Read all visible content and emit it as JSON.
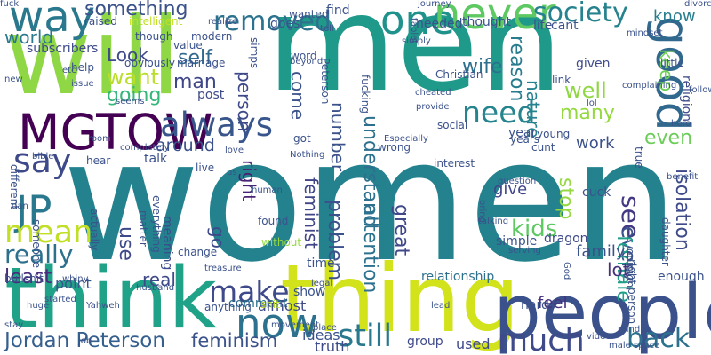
{
  "word_cloud": {
    "background": "#ffffff",
    "words": [
      {
        "text": "men",
        "color": "#1f9a8a"
      },
      {
        "text": "women",
        "color": "#23828e"
      },
      {
        "text": "will",
        "color": "#8fd744"
      },
      {
        "text": "think",
        "color": "#1fa287"
      },
      {
        "text": "thing",
        "color": "#d2e21b"
      },
      {
        "text": "people",
        "color": "#3b518b"
      },
      {
        "text": "MGTOW",
        "color": "#440154"
      },
      {
        "text": "always",
        "color": "#39568c"
      },
      {
        "text": "way",
        "color": "#2a788e"
      },
      {
        "text": "one",
        "color": "#20928c"
      },
      {
        "text": "never",
        "color": "#5ec962"
      },
      {
        "text": "removed",
        "color": "#2c728e"
      },
      {
        "text": "society",
        "color": "#26828e"
      },
      {
        "text": "good",
        "color": "#31688e"
      },
      {
        "text": "JP",
        "color": "#2a788e"
      },
      {
        "text": "now",
        "color": "#2c728e"
      },
      {
        "text": "still",
        "color": "#2a788e"
      },
      {
        "text": "much",
        "color": "#3e4a89"
      },
      {
        "text": "back",
        "color": "#2c728e"
      },
      {
        "text": "Jordan Peterson",
        "color": "#355f8d"
      },
      {
        "text": "feminism",
        "color": "#3b528b"
      },
      {
        "text": "make",
        "color": "#3e4a89"
      },
      {
        "text": "need",
        "color": "#25848e"
      },
      {
        "text": "say",
        "color": "#3e4989"
      },
      {
        "text": "mean",
        "color": "#c0df25"
      },
      {
        "text": "really",
        "color": "#2d708e"
      },
      {
        "text": "least",
        "color": "#472d7b"
      },
      {
        "text": "something",
        "color": "#3b528b"
      },
      {
        "text": "want",
        "color": "#b8de29"
      },
      {
        "text": "going",
        "color": "#35b779"
      },
      {
        "text": "Look",
        "color": "#3e4a89"
      },
      {
        "text": "self",
        "color": "#31688e"
      },
      {
        "text": "man",
        "color": "#3f4788"
      },
      {
        "text": "around",
        "color": "#3b528b"
      },
      {
        "text": "world",
        "color": "#2a788e"
      },
      {
        "text": "wife",
        "color": "#2d708e"
      },
      {
        "text": "well",
        "color": "#90d743"
      },
      {
        "text": "many",
        "color": "#95d840"
      },
      {
        "text": "even",
        "color": "#6ccd5a"
      },
      {
        "text": "know",
        "color": "#277f8e"
      },
      {
        "text": "keep",
        "color": "#70cf57"
      },
      {
        "text": "work",
        "color": "#3b518b"
      },
      {
        "text": "isolation",
        "color": "#3e4a89"
      },
      {
        "text": "see",
        "color": "#443983"
      },
      {
        "text": "every",
        "color": "#3b528b"
      },
      {
        "text": "kids",
        "color": "#5ec962"
      },
      {
        "text": "stop",
        "color": "#95d840"
      },
      {
        "text": "great",
        "color": "#3f4889"
      },
      {
        "text": "female",
        "color": "#1f9e89"
      },
      {
        "text": "feminist",
        "color": "#404588"
      },
      {
        "text": "problem",
        "color": "#3b528b"
      },
      {
        "text": "attention",
        "color": "#2c728e"
      },
      {
        "text": "understand",
        "color": "#2d708e"
      },
      {
        "text": "reason",
        "color": "#287c8e"
      },
      {
        "text": "nature",
        "color": "#26828e"
      },
      {
        "text": "number",
        "color": "#3b528b"
      },
      {
        "text": "person",
        "color": "#3e4989"
      },
      {
        "text": "come",
        "color": "#3b528b"
      },
      {
        "text": "right",
        "color": "#482374"
      },
      {
        "text": "go",
        "color": "#3e4989"
      },
      {
        "text": "use",
        "color": "#3e4a89"
      },
      {
        "text": "real",
        "color": "#3e4a89"
      },
      {
        "text": "point",
        "color": "#39568c"
      },
      {
        "text": "lot",
        "color": "#46317e"
      },
      {
        "text": "feel",
        "color": "#46327e"
      },
      {
        "text": "family",
        "color": "#3b528b"
      },
      {
        "text": "give",
        "color": "#404688"
      },
      {
        "text": "relationship",
        "color": "#2d708e"
      },
      {
        "text": "used",
        "color": "#3e4a89"
      },
      {
        "text": "truth",
        "color": "#3e4a89"
      },
      {
        "text": "ideas",
        "color": "#3b528b"
      },
      {
        "text": "group",
        "color": "#3e4a89"
      },
      {
        "text": "comment",
        "color": "#2c728e"
      },
      {
        "text": "almost",
        "color": "#3e4a89"
      },
      {
        "text": "time",
        "color": "#3b528b"
      },
      {
        "text": "show",
        "color": "#3b528b"
      },
      {
        "text": "hard",
        "color": "#3b528b"
      },
      {
        "text": "enough",
        "color": "#3b528b"
      },
      {
        "text": "religion",
        "color": "#3e4a89"
      },
      {
        "text": "life",
        "color": "#3b528b"
      },
      {
        "text": "given",
        "color": "#3e4a89"
      },
      {
        "text": "year",
        "color": "#3b528b"
      },
      {
        "text": "find",
        "color": "#3b528b"
      },
      {
        "text": "needed",
        "color": "#3b528b"
      },
      {
        "text": "thought",
        "color": "#3b528b"
      },
      {
        "text": "subscribers",
        "color": "#3e4a89"
      },
      {
        "text": "raised",
        "color": "#3b528b"
      },
      {
        "text": "intelligent",
        "color": "#c2df23"
      },
      {
        "text": "goes",
        "color": "#3b528b"
      },
      {
        "text": "post",
        "color": "#3e4a89"
      },
      {
        "text": "word",
        "color": "#3b528b"
      },
      {
        "text": "cuck",
        "color": "#3b528b"
      },
      {
        "text": "simple",
        "color": "#3b528b"
      },
      {
        "text": "dragon",
        "color": "#3e4a89"
      },
      {
        "text": "talk",
        "color": "#3b528b"
      },
      {
        "text": "hear",
        "color": "#3b528b"
      },
      {
        "text": "live",
        "color": "#3b528b"
      },
      {
        "text": "change",
        "color": "#3b528b"
      },
      {
        "text": "meaning",
        "color": "#3e4a89"
      },
      {
        "text": "without",
        "color": "#95d840"
      },
      {
        "text": "found",
        "color": "#3b528b"
      },
      {
        "text": "matter",
        "color": "#3b528b"
      },
      {
        "text": "everything",
        "color": "#3b528b"
      },
      {
        "text": "actually",
        "color": "#3b528b"
      },
      {
        "text": "different",
        "color": "#3b528b"
      },
      {
        "text": "someone",
        "color": "#3b528b"
      },
      {
        "text": "bullshit",
        "color": "#3b528b"
      },
      {
        "text": "anything",
        "color": "#3b528b"
      },
      {
        "text": "shit",
        "color": "#b8de29"
      },
      {
        "text": "interest",
        "color": "#3b528b"
      },
      {
        "text": "cunt",
        "color": "#3b528b"
      },
      {
        "text": "social",
        "color": "#3b528b"
      },
      {
        "text": "wrong",
        "color": "#3b528b"
      },
      {
        "text": "got",
        "color": "#3b528b"
      },
      {
        "text": "years",
        "color": "#3b528b"
      },
      {
        "text": "young",
        "color": "#3b528b"
      },
      {
        "text": "true",
        "color": "#3b528b"
      },
      {
        "text": "opinion",
        "color": "#3b528b"
      },
      {
        "text": "right person",
        "color": "#3b528b"
      },
      {
        "text": "daughter",
        "color": "#3b528b"
      },
      {
        "text": "little",
        "color": "#3b528b"
      },
      {
        "text": "link",
        "color": "#3b528b"
      },
      {
        "text": "cant",
        "color": "#3b528b"
      },
      {
        "text": "Christian",
        "color": "#3b528b"
      },
      {
        "text": "Peterson",
        "color": "#3b528b"
      },
      {
        "text": "help",
        "color": "#3b528b"
      },
      {
        "text": "etc",
        "color": "#3b528b"
      },
      {
        "text": "value",
        "color": "#3b528b"
      },
      {
        "text": "modern",
        "color": "#3b528b"
      },
      {
        "text": "though",
        "color": "#3b528b"
      },
      {
        "text": "simps",
        "color": "#3b528b"
      },
      {
        "text": "marriage",
        "color": "#3b528b"
      },
      {
        "text": "obviously",
        "color": "#3b528b"
      },
      {
        "text": "issue",
        "color": "#3b528b"
      },
      {
        "text": "wanted",
        "color": "#3b528b"
      },
      {
        "text": "fucking",
        "color": "#3b528b"
      },
      {
        "text": "Especially",
        "color": "#3b528b"
      },
      {
        "text": "lol",
        "color": "#3b528b"
      },
      {
        "text": "completely",
        "color": "#3b528b"
      },
      {
        "text": "room",
        "color": "#3b528b"
      },
      {
        "text": "love",
        "color": "#3b528b"
      },
      {
        "text": "Nothing",
        "color": "#3b528b"
      },
      {
        "text": "bible",
        "color": "#3b528b"
      },
      {
        "text": "human",
        "color": "#3b528b"
      },
      {
        "text": "dan",
        "color": "#3b528b"
      },
      {
        "text": "bring",
        "color": "#3b528b"
      },
      {
        "text": "question",
        "color": "#3b528b"
      },
      {
        "text": "talking",
        "color": "#3b528b"
      },
      {
        "text": "serving",
        "color": "#3b528b"
      },
      {
        "text": "God",
        "color": "#3b528b"
      },
      {
        "text": "mind",
        "color": "#3b528b"
      },
      {
        "text": "male space",
        "color": "#3b528b"
      },
      {
        "text": "video",
        "color": "#3b528b"
      },
      {
        "text": "lead",
        "color": "#3b528b"
      },
      {
        "text": "place",
        "color": "#3b528b"
      },
      {
        "text": "movement",
        "color": "#3b528b"
      },
      {
        "text": "treasure",
        "color": "#3b528b"
      },
      {
        "text": "husband",
        "color": "#3b528b"
      },
      {
        "text": "started",
        "color": "#3b528b"
      },
      {
        "text": "huge",
        "color": "#3b528b"
      },
      {
        "text": "whiny",
        "color": "#3b528b"
      },
      {
        "text": "job",
        "color": "#3b528b"
      },
      {
        "text": "Yahweh",
        "color": "#3b528b"
      },
      {
        "text": "legal",
        "color": "#3b528b"
      },
      {
        "text": "stay",
        "color": "#3b528b"
      },
      {
        "text": "hero",
        "color": "#3b528b"
      },
      {
        "text": "follower",
        "color": "#3b528b"
      },
      {
        "text": "divorce",
        "color": "#3b528b"
      },
      {
        "text": "benefit",
        "color": "#3b528b"
      },
      {
        "text": "beyond",
        "color": "#3b528b"
      },
      {
        "text": "tell",
        "color": "#3b528b"
      },
      {
        "text": "realize",
        "color": "#3b528b"
      },
      {
        "text": "seems",
        "color": "#3b528b"
      },
      {
        "text": "provide",
        "color": "#3b528b"
      },
      {
        "text": "simply",
        "color": "#3b528b"
      },
      {
        "text": "tablet",
        "color": "#3b528b"
      },
      {
        "text": "journey",
        "color": "#3b528b"
      },
      {
        "text": "cheated",
        "color": "#3b528b"
      },
      {
        "text": "complaining",
        "color": "#3b528b"
      },
      {
        "text": "mindset",
        "color": "#3b528b"
      },
      {
        "text": "new",
        "color": "#3b528b"
      },
      {
        "text": "us",
        "color": "#3b528b"
      },
      {
        "text": "fuck",
        "color": "#3b528b"
      }
    ]
  }
}
